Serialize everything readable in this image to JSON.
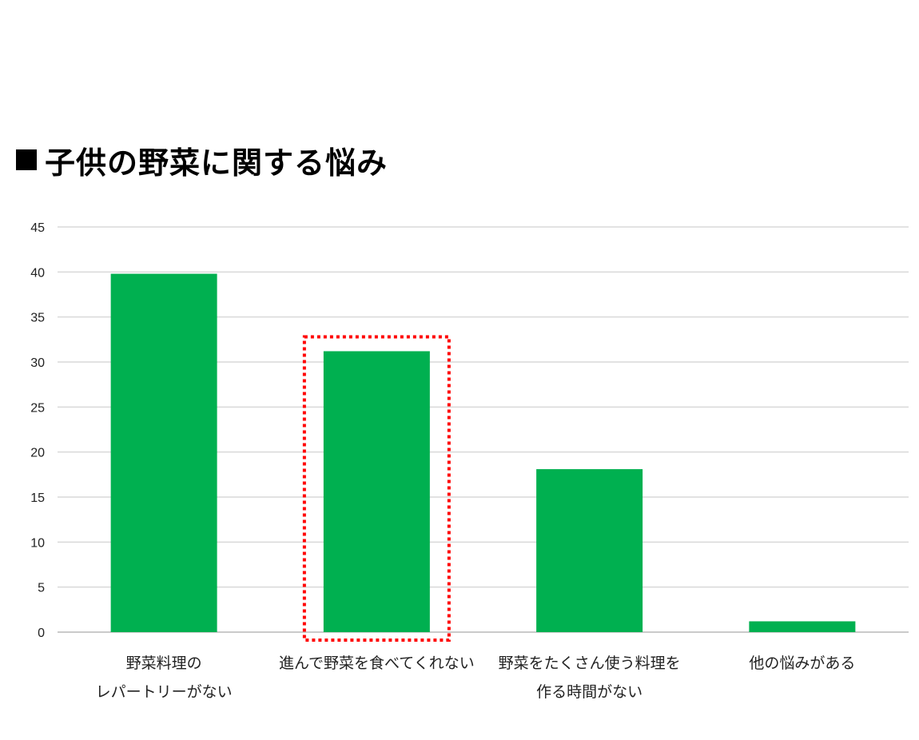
{
  "title": "子供の野菜に関する悩み",
  "chart_data": {
    "type": "bar",
    "categories": [
      [
        "野菜料理の",
        "レパートリーがない"
      ],
      [
        "進んで野菜を食べてくれない"
      ],
      [
        "野菜をたくさん使う料理を",
        "作る時間がない"
      ],
      [
        "他の悩みがある"
      ]
    ],
    "values": [
      39.8,
      31.2,
      18.1,
      1.2
    ],
    "ylim": [
      0,
      45
    ],
    "yticks": [
      0,
      5,
      10,
      15,
      20,
      25,
      30,
      35,
      40,
      45
    ],
    "grid": true,
    "highlight_index": 1,
    "colors": {
      "bar": "#00b050",
      "grid": "#d9d9d9",
      "highlight": "#ff0000"
    }
  }
}
